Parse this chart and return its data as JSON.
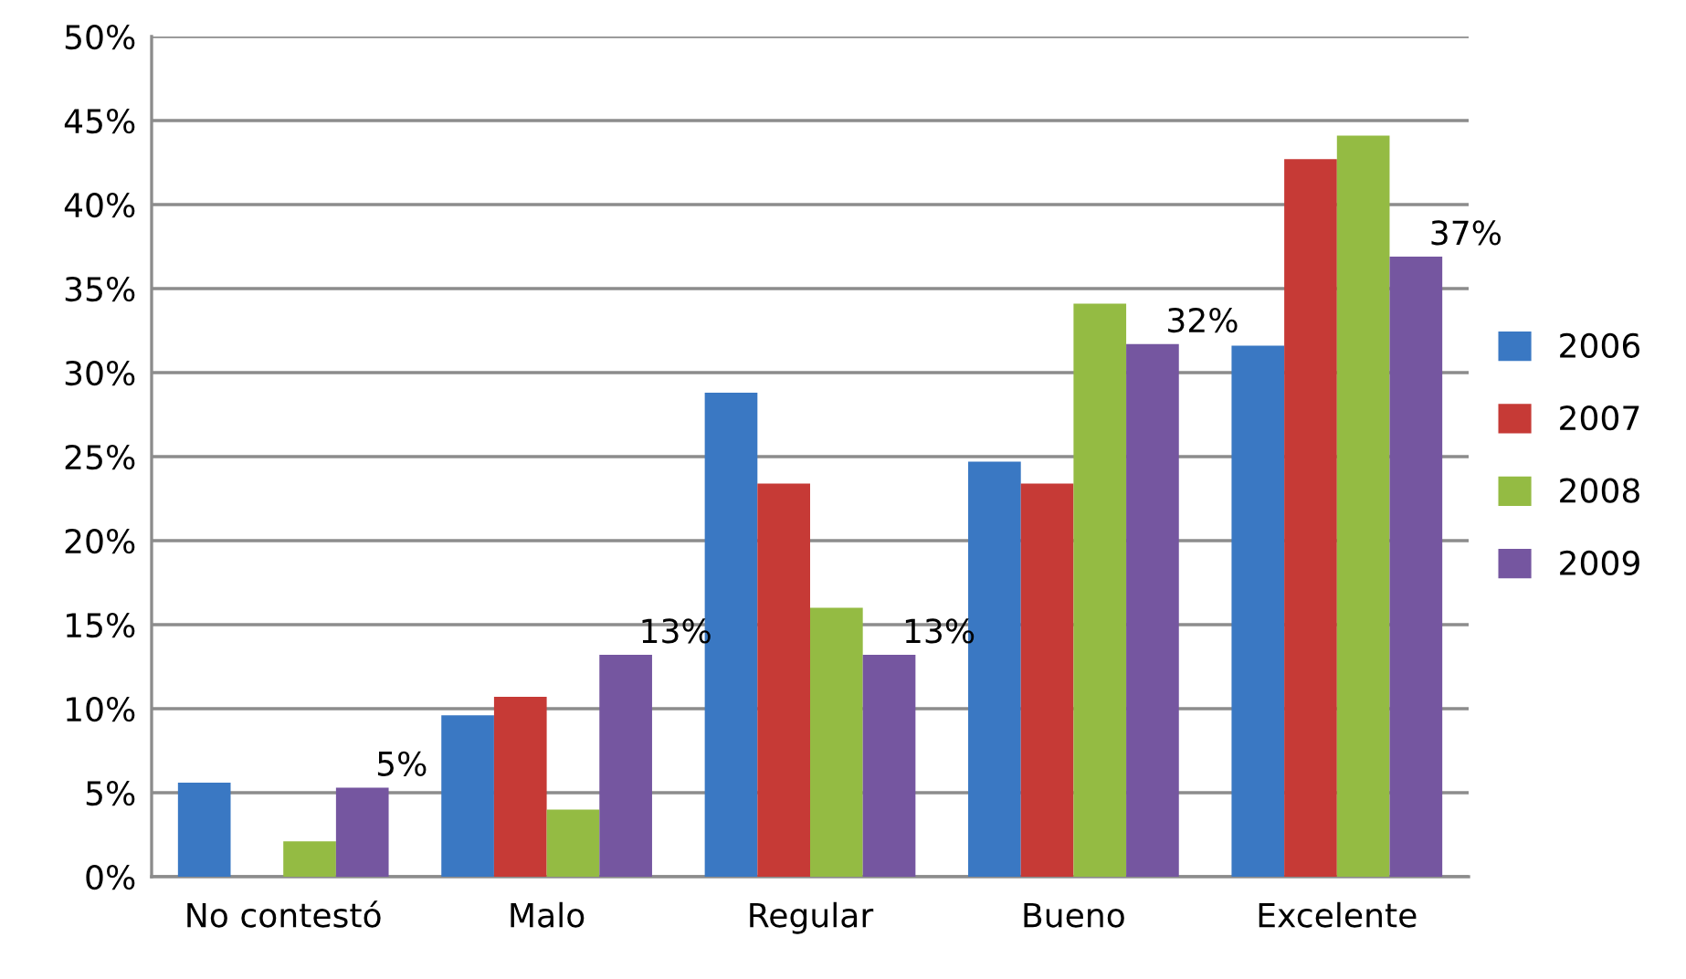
{
  "chart_data": {
    "type": "bar",
    "categories": [
      "No contestó",
      "Malo",
      "Regular",
      "Bueno",
      "Excelente"
    ],
    "series": [
      {
        "name": "2006",
        "color": "#3a78c3",
        "values": [
          5.6,
          9.6,
          28.8,
          24.7,
          31.6
        ]
      },
      {
        "name": "2007",
        "color": "#c63a36",
        "values": [
          0,
          10.7,
          23.4,
          23.4,
          42.7
        ]
      },
      {
        "name": "2008",
        "color": "#94bb43",
        "values": [
          2.1,
          4.0,
          16.0,
          34.1,
          44.1
        ]
      },
      {
        "name": "2009",
        "color": "#7556a0",
        "values": [
          5.3,
          13.2,
          13.2,
          31.7,
          36.9
        ],
        "value_labels": [
          "5%",
          "13%",
          "13%",
          "32%",
          "37%"
        ]
      }
    ],
    "ylim": [
      0,
      50
    ],
    "yticks": [
      {
        "value": 0,
        "label": "0%"
      },
      {
        "value": 5,
        "label": "5%"
      },
      {
        "value": 10,
        "label": "10%"
      },
      {
        "value": 15,
        "label": "15%"
      },
      {
        "value": 20,
        "label": "20%"
      },
      {
        "value": 25,
        "label": "25%"
      },
      {
        "value": 30,
        "label": "30%"
      },
      {
        "value": 35,
        "label": "35%"
      },
      {
        "value": 40,
        "label": "40%"
      },
      {
        "value": 45,
        "label": "45%"
      },
      {
        "value": 50,
        "label": "50%"
      }
    ],
    "grid": "y",
    "legend": "right"
  }
}
